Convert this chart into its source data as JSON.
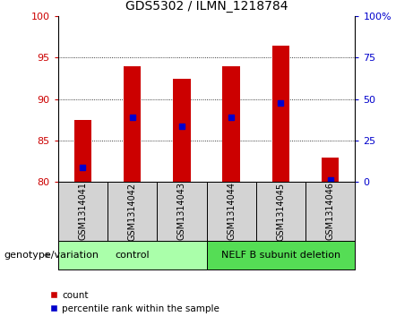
{
  "title": "GDS5302 / ILMN_1218784",
  "samples": [
    "GSM1314041",
    "GSM1314042",
    "GSM1314043",
    "GSM1314044",
    "GSM1314045",
    "GSM1314046"
  ],
  "bar_tops": [
    87.5,
    94.0,
    92.5,
    94.0,
    96.5,
    83.0
  ],
  "bar_bottom": 80.0,
  "blue_markers": [
    81.8,
    87.8,
    86.7,
    87.8,
    89.5,
    80.2
  ],
  "ylim_left": [
    80,
    100
  ],
  "ylim_right": [
    0,
    100
  ],
  "yticks_left": [
    80,
    85,
    90,
    95,
    100
  ],
  "yticks_right": [
    0,
    25,
    50,
    75,
    100
  ],
  "ytick_labels_right": [
    "0",
    "25",
    "50",
    "75",
    "100%"
  ],
  "bar_color": "#cc0000",
  "blue_color": "#0000cc",
  "bar_width": 0.35,
  "groups": [
    {
      "label": "control",
      "start": 0,
      "end": 3,
      "color": "#aaffaa"
    },
    {
      "label": "NELF B subunit deletion",
      "start": 3,
      "end": 6,
      "color": "#55dd55"
    }
  ],
  "group_row_label": "genotype/variation",
  "legend_count_label": "count",
  "legend_percentile_label": "percentile rank within the sample",
  "sample_box_color": "#d3d3d3",
  "plot_bg": "#ffffff",
  "grid_color": "black",
  "grid_lw": 0.6,
  "grid_style": "dotted",
  "grid_vals": [
    85,
    90,
    95
  ]
}
